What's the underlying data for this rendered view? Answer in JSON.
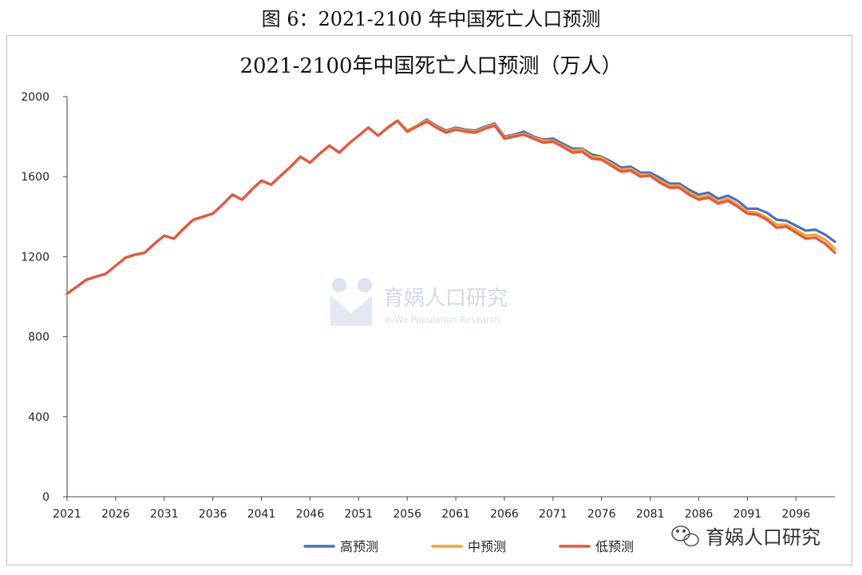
{
  "figure_caption": "图 6：2021-2100 年中国死亡人口预测",
  "watermark": {
    "text": "育娲人口研究",
    "subtext": "YuWa Population Research"
  },
  "wechat_badge": {
    "text": "育娲人口研究",
    "icon": "wechat-icon"
  },
  "chart_data": {
    "type": "line",
    "title": "2021-2100年中国死亡人口预测（万人）",
    "xlabel": "",
    "ylabel": "",
    "ylim": [
      0,
      2000
    ],
    "yticks": [
      0,
      400,
      800,
      1200,
      1600,
      2000
    ],
    "xlim": [
      2021,
      2100
    ],
    "xticks": [
      "2021",
      "2026",
      "2031",
      "2036",
      "2041",
      "2046",
      "2051",
      "2056",
      "2061",
      "2066",
      "2071",
      "2076",
      "2081",
      "2086",
      "2091",
      "2096"
    ],
    "grid": false,
    "legend": "bottom",
    "x": [
      2021,
      2022,
      2023,
      2024,
      2025,
      2026,
      2027,
      2028,
      2029,
      2030,
      2031,
      2032,
      2033,
      2034,
      2035,
      2036,
      2037,
      2038,
      2039,
      2040,
      2041,
      2042,
      2043,
      2044,
      2045,
      2046,
      2047,
      2048,
      2049,
      2050,
      2051,
      2052,
      2053,
      2054,
      2055,
      2056,
      2057,
      2058,
      2059,
      2060,
      2061,
      2062,
      2063,
      2064,
      2065,
      2066,
      2067,
      2068,
      2069,
      2070,
      2071,
      2072,
      2073,
      2074,
      2075,
      2076,
      2077,
      2078,
      2079,
      2080,
      2081,
      2082,
      2083,
      2084,
      2085,
      2086,
      2087,
      2088,
      2089,
      2090,
      2091,
      2092,
      2093,
      2094,
      2095,
      2096,
      2097,
      2098,
      2099,
      2100
    ],
    "series": [
      {
        "name": "高预测",
        "color": "#4472c4",
        "values": [
          1015,
          1050,
          1085,
          1100,
          1115,
          1155,
          1195,
          1210,
          1220,
          1265,
          1305,
          1290,
          1340,
          1385,
          1400,
          1415,
          1460,
          1510,
          1485,
          1535,
          1580,
          1560,
          1605,
          1650,
          1700,
          1670,
          1715,
          1755,
          1720,
          1765,
          1805,
          1845,
          1805,
          1845,
          1880,
          1830,
          1855,
          1885,
          1855,
          1830,
          1845,
          1835,
          1830,
          1850,
          1865,
          1800,
          1810,
          1825,
          1800,
          1785,
          1790,
          1765,
          1740,
          1740,
          1710,
          1700,
          1675,
          1645,
          1650,
          1620,
          1620,
          1595,
          1565,
          1565,
          1535,
          1510,
          1520,
          1490,
          1505,
          1480,
          1440,
          1440,
          1420,
          1385,
          1380,
          1355,
          1330,
          1335,
          1310,
          1275
        ]
      },
      {
        "name": "中预测",
        "color": "#f4a52a",
        "values": [
          1015,
          1050,
          1085,
          1100,
          1115,
          1155,
          1195,
          1210,
          1220,
          1265,
          1305,
          1290,
          1340,
          1385,
          1400,
          1415,
          1460,
          1510,
          1485,
          1535,
          1580,
          1560,
          1605,
          1650,
          1700,
          1670,
          1715,
          1755,
          1720,
          1765,
          1805,
          1845,
          1805,
          1845,
          1880,
          1830,
          1855,
          1880,
          1850,
          1825,
          1840,
          1830,
          1825,
          1845,
          1860,
          1795,
          1805,
          1815,
          1795,
          1780,
          1780,
          1755,
          1730,
          1735,
          1700,
          1695,
          1665,
          1635,
          1640,
          1610,
          1610,
          1580,
          1555,
          1555,
          1520,
          1495,
          1505,
          1475,
          1490,
          1460,
          1425,
          1420,
          1395,
          1360,
          1360,
          1335,
          1305,
          1310,
          1285,
          1240
        ]
      },
      {
        "name": "低预测",
        "color": "#e8553f",
        "values": [
          1015,
          1050,
          1085,
          1100,
          1115,
          1155,
          1195,
          1210,
          1220,
          1265,
          1305,
          1290,
          1340,
          1385,
          1400,
          1415,
          1460,
          1510,
          1485,
          1535,
          1580,
          1560,
          1605,
          1650,
          1700,
          1670,
          1715,
          1755,
          1720,
          1765,
          1805,
          1845,
          1805,
          1845,
          1880,
          1825,
          1850,
          1875,
          1845,
          1820,
          1835,
          1825,
          1820,
          1840,
          1855,
          1790,
          1800,
          1810,
          1790,
          1770,
          1775,
          1750,
          1720,
          1725,
          1690,
          1685,
          1655,
          1625,
          1630,
          1600,
          1605,
          1570,
          1545,
          1545,
          1510,
          1485,
          1495,
          1465,
          1480,
          1450,
          1415,
          1410,
          1385,
          1345,
          1350,
          1320,
          1290,
          1295,
          1265,
          1220
        ]
      }
    ]
  }
}
